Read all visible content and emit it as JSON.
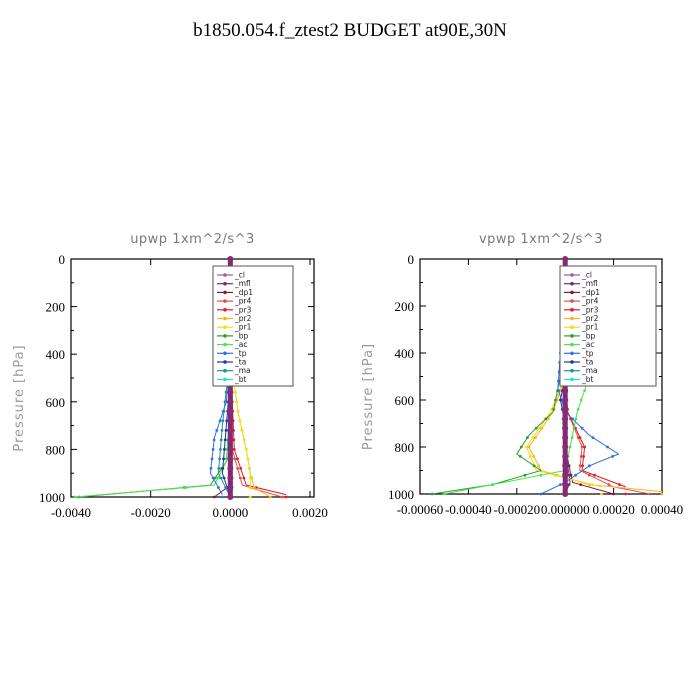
{
  "title": "b1850.054.f_ztest2  BUDGET at90E,30N",
  "chart_data": [
    {
      "type": "line",
      "title": "upwp   1xm^2/s^3",
      "ylabel": "Pressure [hPa]",
      "xlim": [
        -0.004,
        0.0021
      ],
      "ylim": [
        1000,
        0
      ],
      "xticks": [
        "-0.0040",
        "-0.0020",
        "0.0000",
        "0.0020"
      ],
      "xtick_values": [
        -0.004,
        -0.002,
        0.0,
        0.002
      ],
      "yticks": [
        "0",
        "200",
        "400",
        "600",
        "800",
        "1000"
      ],
      "ytick_values": [
        0,
        200,
        400,
        600,
        800,
        1000
      ],
      "legend": "top-right",
      "series": [
        {
          "name": "_cl",
          "color": "#9b59b6",
          "points": [
            [
              0,
              0
            ],
            [
              0,
              200
            ],
            [
              0,
              400
            ],
            [
              0,
              600
            ],
            [
              0,
              800
            ],
            [
              0,
              1000
            ]
          ]
        },
        {
          "name": "_mfl",
          "color": "#7b2a6e",
          "points": [
            [
              0,
              0
            ],
            [
              0,
              200
            ],
            [
              0,
              400
            ],
            [
              0,
              600
            ],
            [
              0,
              800
            ],
            [
              5e-05,
              950
            ],
            [
              0,
              1000
            ]
          ]
        },
        {
          "name": "_dp1",
          "color": "#8b1a3a",
          "points": [
            [
              0,
              0
            ],
            [
              0,
              200
            ],
            [
              0,
              400
            ],
            [
              0,
              600
            ],
            [
              0,
              800
            ],
            [
              0,
              950
            ],
            [
              -0.0004,
              1000
            ]
          ]
        },
        {
          "name": "_pr4",
          "color": "#e05050",
          "points": [
            [
              0,
              0
            ],
            [
              0,
              400
            ],
            [
              5e-05,
              800
            ],
            [
              0.0003,
              950
            ],
            [
              0.0013,
              1000
            ]
          ]
        },
        {
          "name": "_pr3",
          "color": "#e02020",
          "points": [
            [
              0,
              0
            ],
            [
              0,
              400
            ],
            [
              0.0001,
              800
            ],
            [
              0.0004,
              950
            ],
            [
              0.0014,
              990
            ]
          ]
        },
        {
          "name": "_pr2",
          "color": "#ffb020",
          "points": [
            [
              0,
              0
            ],
            [
              0,
              400
            ],
            [
              0.0002,
              650
            ],
            [
              0.0004,
              800
            ],
            [
              0.0005,
              900
            ],
            [
              0.0006,
              960
            ],
            [
              0.001,
              1000
            ]
          ]
        },
        {
          "name": "_pr1",
          "color": "#f0e010",
          "points": [
            [
              0,
              0
            ],
            [
              0,
              400
            ],
            [
              0.0002,
              650
            ],
            [
              0.0004,
              800
            ],
            [
              0.0005,
              900
            ],
            [
              0.0005,
              970
            ]
          ]
        },
        {
          "name": "_bp",
          "color": "#2aa02a",
          "points": [
            [
              0,
              0
            ],
            [
              0,
              600
            ],
            [
              -0.0001,
              850
            ],
            [
              -0.0005,
              950
            ],
            [
              -0.0038,
              1000
            ]
          ]
        },
        {
          "name": "_ac",
          "color": "#50e050",
          "points": [
            [
              0,
              0
            ],
            [
              0,
              600
            ],
            [
              -0.0001,
              850
            ],
            [
              -0.0004,
              950
            ],
            [
              -0.0039,
              1000
            ]
          ]
        },
        {
          "name": "_tp",
          "color": "#3070e0",
          "points": [
            [
              0,
              0
            ],
            [
              0,
              300
            ],
            [
              -0.0001,
              600
            ],
            [
              -0.0004,
              750
            ],
            [
              -0.0005,
              900
            ],
            [
              -0.0002,
              990
            ]
          ]
        },
        {
          "name": "_ta",
          "color": "#1a3a9a",
          "points": [
            [
              0,
              0
            ],
            [
              0,
              500
            ],
            [
              -0.0002,
              900
            ],
            [
              0,
              1000
            ]
          ]
        },
        {
          "name": "_ma",
          "color": "#2090a0",
          "points": [
            [
              0,
              0
            ],
            [
              0,
              400
            ],
            [
              -0.0002,
              700
            ],
            [
              -0.0003,
              900
            ],
            [
              0,
              1000
            ]
          ]
        },
        {
          "name": "_bt",
          "color": "#20e0e0",
          "points": [
            [
              0,
              0
            ],
            [
              0,
              1000
            ]
          ]
        }
      ]
    },
    {
      "type": "line",
      "title": "vpwp   1xm^2/s^3",
      "ylabel": "Pressure [hPa]",
      "xlim": [
        -0.0006,
        0.0004
      ],
      "ylim": [
        1000,
        0
      ],
      "xticks": [
        "-0.00060",
        "-0.00040",
        "-0.00020",
        "0.000000",
        "0.00020",
        "0.00040"
      ],
      "xtick_values": [
        -0.0006,
        -0.0004,
        -0.0002,
        0.0,
        0.0002,
        0.0004
      ],
      "yticks": [
        "0",
        "200",
        "400",
        "600",
        "800",
        "1000"
      ],
      "ytick_values": [
        0,
        200,
        400,
        600,
        800,
        1000
      ],
      "legend": "top-right",
      "series": [
        {
          "name": "_cl",
          "color": "#9b59b6",
          "points": [
            [
              0,
              0
            ],
            [
              0,
              200
            ],
            [
              0,
              400
            ],
            [
              0,
              600
            ],
            [
              0,
              800
            ],
            [
              0,
              1000
            ]
          ]
        },
        {
          "name": "_mfl",
          "color": "#7b2a6e",
          "points": [
            [
              0,
              0
            ],
            [
              0,
              200
            ],
            [
              0,
              400
            ],
            [
              0,
              600
            ],
            [
              0,
              800
            ],
            [
              2e-05,
              950
            ],
            [
              0,
              1000
            ]
          ]
        },
        {
          "name": "_dp1",
          "color": "#8b1a3a",
          "points": [
            [
              0,
              0
            ],
            [
              0,
              600
            ],
            [
              0,
              800
            ],
            [
              3e-05,
              950
            ],
            [
              0.0002,
              1000
            ]
          ]
        },
        {
          "name": "_pr4",
          "color": "#e05050",
          "points": [
            [
              0,
              0
            ],
            [
              0,
              500
            ],
            [
              1e-05,
              650
            ],
            [
              7e-05,
              800
            ],
            [
              6e-05,
              900
            ],
            [
              0.0002,
              970
            ],
            [
              0.00035,
              1000
            ]
          ]
        },
        {
          "name": "_pr3",
          "color": "#e02020",
          "points": [
            [
              0,
              0
            ],
            [
              0,
              500
            ],
            [
              1e-05,
              650
            ],
            [
              8e-05,
              800
            ],
            [
              7e-05,
              900
            ],
            [
              0.00025,
              970
            ]
          ]
        },
        {
          "name": "_pr2",
          "color": "#ffb020",
          "points": [
            [
              0,
              0
            ],
            [
              0,
              500
            ],
            [
              -5e-05,
              650
            ],
            [
              -0.00015,
              800
            ],
            [
              -0.0001,
              900
            ],
            [
              0.0001,
              960
            ],
            [
              0.0004,
              990
            ]
          ]
        },
        {
          "name": "_pr1",
          "color": "#f0e010",
          "points": [
            [
              0,
              0
            ],
            [
              0,
              500
            ],
            [
              -6e-05,
              650
            ],
            [
              -0.00016,
              800
            ],
            [
              -0.00012,
              900
            ],
            [
              0.00015,
              970
            ]
          ]
        },
        {
          "name": "_bp",
          "color": "#2aa02a",
          "points": [
            [
              0,
              0
            ],
            [
              0,
              400
            ],
            [
              -5e-05,
              650
            ],
            [
              -0.00015,
              750
            ],
            [
              -0.0002,
              830
            ],
            [
              -0.0001,
              900
            ],
            [
              -0.0003,
              960
            ],
            [
              -0.00055,
              1000
            ]
          ]
        },
        {
          "name": "_ac",
          "color": "#50e050",
          "points": [
            [
              0,
              0
            ],
            [
              2e-05,
              300
            ],
            [
              0.0001,
              500
            ],
            [
              5e-05,
              650
            ],
            [
              0,
              900
            ],
            [
              -0.0005,
              1000
            ]
          ]
        },
        {
          "name": "_tp",
          "color": "#3070e0",
          "points": [
            [
              0,
              0
            ],
            [
              -2e-05,
              400
            ],
            [
              -3e-05,
              550
            ],
            [
              0,
              650
            ],
            [
              0.0001,
              750
            ],
            [
              0.00022,
              830
            ],
            [
              0.0001,
              880
            ],
            [
              0,
              950
            ],
            [
              -0.0001,
              1000
            ]
          ]
        },
        {
          "name": "_ta",
          "color": "#1a3a9a",
          "points": [
            [
              0,
              0
            ],
            [
              0,
              500
            ],
            [
              -2e-05,
              600
            ],
            [
              0,
              700
            ],
            [
              1e-05,
              900
            ],
            [
              0,
              1000
            ]
          ]
        },
        {
          "name": "_ma",
          "color": "#2090a0",
          "points": [
            [
              0,
              0
            ],
            [
              1e-05,
              300
            ],
            [
              0,
              500
            ],
            [
              -1e-05,
              700
            ],
            [
              1e-05,
              900
            ],
            [
              0,
              1000
            ]
          ]
        },
        {
          "name": "_bt",
          "color": "#20e0e0",
          "points": [
            [
              0,
              0
            ],
            [
              0,
              1000
            ]
          ]
        }
      ]
    }
  ]
}
